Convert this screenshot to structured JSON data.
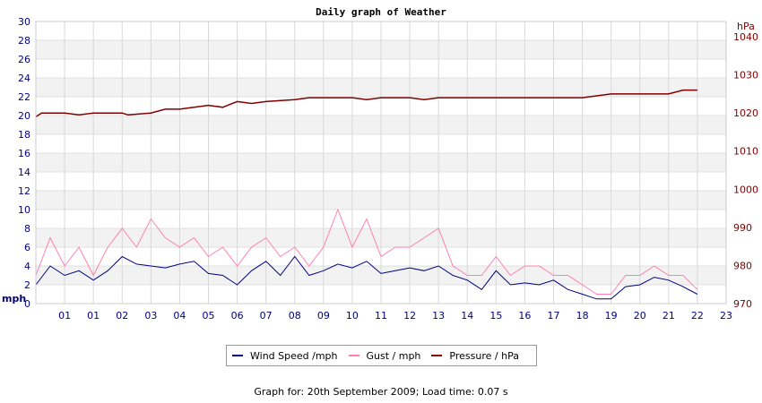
{
  "chart_data": {
    "type": "line",
    "title": "Daily graph of Weather",
    "left_axis": {
      "unit": "mph",
      "ylim": [
        0,
        30
      ],
      "ticks": [
        0,
        2,
        4,
        6,
        8,
        10,
        12,
        14,
        16,
        18,
        20,
        22,
        24,
        26,
        28,
        30
      ]
    },
    "right_axis": {
      "unit": "hPa",
      "ylim": [
        970,
        1044
      ],
      "ticks": [
        970,
        980,
        990,
        1000,
        1010,
        1020,
        1030,
        1040
      ]
    },
    "x_ticks": [
      "01",
      "01",
      "02",
      "03",
      "04",
      "05",
      "06",
      "07",
      "08",
      "09",
      "10",
      "11",
      "12",
      "13",
      "14",
      "15",
      "16",
      "17",
      "18",
      "19",
      "20",
      "21",
      "22",
      "23"
    ],
    "x_range": [
      0,
      24
    ],
    "grid": true,
    "legend": "bottom",
    "series": [
      {
        "name": "Wind Speed /mph",
        "color": "#000080",
        "axis": "left",
        "x": [
          0,
          0.5,
          1,
          1.5,
          2,
          2.5,
          3,
          3.5,
          4,
          4.5,
          5,
          5.5,
          6,
          6.5,
          7,
          7.5,
          8,
          8.5,
          9,
          9.5,
          10,
          10.5,
          11,
          11.5,
          12,
          12.5,
          13,
          13.5,
          14,
          14.5,
          15,
          15.5,
          16,
          16.5,
          17,
          17.5,
          18,
          18.5,
          19,
          19.5,
          20,
          20.5,
          21,
          21.5,
          22,
          22.5,
          23
        ],
        "values": [
          2,
          4,
          3,
          3.5,
          2.5,
          3.5,
          5,
          4.2,
          4,
          3.8,
          4.2,
          4.5,
          3.2,
          3,
          2,
          3.5,
          4.5,
          3,
          5,
          3,
          3.5,
          4.2,
          3.8,
          4.5,
          3.2,
          3.5,
          3.8,
          3.5,
          4,
          3,
          2.5,
          1.5,
          3.5,
          2,
          2.2,
          2,
          2.5,
          1.5,
          1,
          0.5,
          0.5,
          1.8,
          2,
          2.8,
          2.5,
          1.8,
          1
        ]
      },
      {
        "name": "Gust / mph",
        "color": "#ff80b0",
        "axis": "left",
        "x": [
          0,
          0.5,
          1,
          1.5,
          2,
          2.5,
          3,
          3.5,
          4,
          4.5,
          5,
          5.5,
          6,
          6.5,
          7,
          7.5,
          8,
          8.5,
          9,
          9.5,
          10,
          10.5,
          11,
          11.5,
          12,
          12.5,
          13,
          13.5,
          14,
          14.5,
          15,
          15.5,
          16,
          16.5,
          17,
          17.5,
          18,
          18.5,
          19,
          19.5,
          20,
          20.5,
          21,
          21.5,
          22,
          22.5,
          23
        ],
        "values": [
          3,
          7,
          4,
          6,
          3,
          6,
          8,
          6,
          9,
          7,
          6,
          7,
          5,
          6,
          4,
          6,
          7,
          5,
          6,
          4,
          6,
          10,
          6,
          9,
          5,
          6,
          6,
          7,
          8,
          4,
          3,
          3,
          5,
          3,
          4,
          4,
          3,
          3,
          2,
          1,
          1,
          3,
          3,
          4,
          3,
          3,
          1.5
        ]
      },
      {
        "name": "Pressure / hPa",
        "color": "#800000",
        "axis": "right",
        "x": [
          0,
          0.2,
          1,
          1.5,
          2,
          3,
          3.2,
          4,
          4.5,
          5,
          5.5,
          6,
          6.5,
          7,
          7.5,
          8,
          9,
          9.5,
          10,
          11,
          11.5,
          12,
          13,
          13.5,
          14,
          15,
          16,
          17,
          18,
          19,
          20,
          21,
          21.5,
          22,
          22.5,
          23
        ],
        "values": [
          1019,
          1020,
          1020,
          1019.5,
          1020,
          1020,
          1019.5,
          1020,
          1021,
          1021,
          1021.5,
          1022,
          1021.5,
          1023,
          1022.5,
          1023,
          1023.5,
          1024,
          1024,
          1024,
          1023.5,
          1024,
          1024,
          1023.5,
          1024,
          1024,
          1024,
          1024,
          1024,
          1024,
          1025,
          1025,
          1025,
          1025,
          1026,
          1026
        ]
      }
    ]
  },
  "footer": "Graph for: 20th September 2009; Load time: 0.07 s"
}
